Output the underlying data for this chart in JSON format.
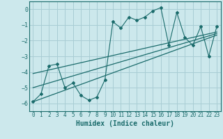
{
  "xlabel": "Humidex (Indice chaleur)",
  "bg_color": "#cce8ec",
  "grid_color": "#a8cdd4",
  "line_color": "#1a6b6b",
  "xlim": [
    -0.5,
    23.5
  ],
  "ylim": [
    -6.5,
    0.5
  ],
  "xticks": [
    0,
    1,
    2,
    3,
    4,
    5,
    6,
    7,
    8,
    9,
    10,
    11,
    12,
    13,
    14,
    15,
    16,
    17,
    18,
    19,
    20,
    21,
    22,
    23
  ],
  "yticks": [
    0,
    -1,
    -2,
    -3,
    -4,
    -5,
    -6
  ],
  "scatter_x": [
    0,
    1,
    2,
    3,
    4,
    5,
    6,
    7,
    8,
    9,
    10,
    11,
    12,
    13,
    14,
    15,
    16,
    17,
    18,
    19,
    20,
    21,
    22,
    23
  ],
  "scatter_y": [
    -5.9,
    -5.4,
    -3.6,
    -3.5,
    -5.0,
    -4.7,
    -5.5,
    -5.8,
    -5.6,
    -4.5,
    -0.8,
    -1.2,
    -0.5,
    -0.7,
    -0.5,
    -0.1,
    0.1,
    -2.3,
    -0.2,
    -1.8,
    -2.3,
    -1.1,
    -3.0,
    -1.1
  ],
  "reg_lines": [
    {
      "x": [
        0,
        23
      ],
      "y": [
        -5.9,
        -1.65
      ]
    },
    {
      "x": [
        0,
        23
      ],
      "y": [
        -5.0,
        -1.55
      ]
    },
    {
      "x": [
        0,
        23
      ],
      "y": [
        -4.1,
        -1.45
      ]
    }
  ]
}
